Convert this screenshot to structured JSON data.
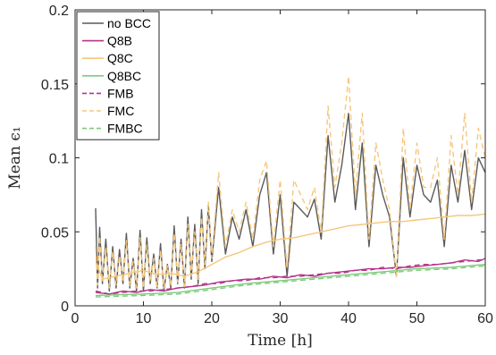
{
  "chart_data": {
    "type": "line",
    "xlabel": "Time [h]",
    "ylabel": "Mean ϵ₁",
    "xlim": [
      0,
      60
    ],
    "ylim": [
      0,
      0.2
    ],
    "xticks": [
      0,
      10,
      20,
      30,
      40,
      50,
      60
    ],
    "xtick_labels": [
      "0",
      "10",
      "20",
      "30",
      "40",
      "50",
      "60"
    ],
    "yticks": [
      0,
      0.05,
      0.1,
      0.15,
      0.2
    ],
    "ytick_labels": [
      "0",
      "0.05",
      "0.1",
      "0.15",
      "0.2"
    ],
    "grid": false,
    "legend_position": "top-left",
    "series": [
      {
        "name": "no BCC",
        "color": "#5a5a5a",
        "dash": "solid",
        "x": [
          3,
          3.3,
          3.6,
          4,
          4.5,
          5,
          5.5,
          6,
          6.5,
          7,
          7.5,
          8,
          8.5,
          9,
          9.5,
          10,
          10.5,
          11,
          11.5,
          12,
          12.5,
          13,
          13.5,
          14,
          14.5,
          15,
          15.5,
          16,
          16.5,
          17,
          17.5,
          18,
          18.5,
          19,
          19.5,
          20,
          21,
          22,
          23,
          24,
          25,
          26,
          27,
          28,
          29,
          30,
          31,
          32,
          33,
          34,
          35,
          36,
          37,
          38,
          39,
          40,
          41,
          42,
          43,
          44,
          45,
          46,
          47,
          48,
          49,
          50,
          51,
          52,
          53,
          54,
          55,
          56,
          57,
          58,
          59,
          60
        ],
        "y": [
          0.066,
          0.012,
          0.053,
          0.015,
          0.045,
          0.01,
          0.04,
          0.012,
          0.038,
          0.015,
          0.049,
          0.012,
          0.032,
          0.01,
          0.051,
          0.01,
          0.046,
          0.015,
          0.035,
          0.012,
          0.042,
          0.01,
          0.028,
          0.012,
          0.054,
          0.015,
          0.045,
          0.012,
          0.06,
          0.018,
          0.055,
          0.015,
          0.065,
          0.025,
          0.068,
          0.03,
          0.08,
          0.035,
          0.06,
          0.045,
          0.065,
          0.04,
          0.075,
          0.09,
          0.035,
          0.075,
          0.02,
          0.07,
          0.065,
          0.06,
          0.072,
          0.045,
          0.115,
          0.07,
          0.095,
          0.13,
          0.065,
          0.11,
          0.04,
          0.095,
          0.075,
          0.06,
          0.02,
          0.1,
          0.06,
          0.095,
          0.075,
          0.07,
          0.085,
          0.04,
          0.095,
          0.07,
          0.105,
          0.065,
          0.1,
          0.09
        ]
      },
      {
        "name": "Q8B",
        "color": "#b5338a",
        "dash": "solid",
        "x": [
          3,
          5,
          7,
          9,
          11,
          13,
          15,
          17,
          19,
          21,
          23,
          25,
          27,
          29,
          31,
          33,
          35,
          37,
          39,
          41,
          43,
          45,
          47,
          49,
          51,
          53,
          55,
          57,
          59,
          60
        ],
        "y": [
          0.009,
          0.008,
          0.01,
          0.009,
          0.011,
          0.01,
          0.012,
          0.013,
          0.014,
          0.016,
          0.017,
          0.018,
          0.018,
          0.02,
          0.019,
          0.021,
          0.02,
          0.022,
          0.023,
          0.024,
          0.025,
          0.025,
          0.026,
          0.026,
          0.027,
          0.028,
          0.029,
          0.031,
          0.03,
          0.032
        ]
      },
      {
        "name": "Q8C",
        "color": "#f6c77c",
        "dash": "solid",
        "x": [
          3,
          4,
          6,
          8,
          10,
          12,
          14,
          16,
          18,
          20,
          22,
          24,
          26,
          28,
          30,
          32,
          34,
          36,
          38,
          40,
          42,
          44,
          46,
          48,
          50,
          52,
          54,
          56,
          58,
          60
        ],
        "y": [
          0.03,
          0.018,
          0.02,
          0.022,
          0.024,
          0.021,
          0.022,
          0.02,
          0.023,
          0.028,
          0.033,
          0.036,
          0.04,
          0.043,
          0.045,
          0.046,
          0.048,
          0.05,
          0.052,
          0.054,
          0.055,
          0.056,
          0.057,
          0.057,
          0.058,
          0.059,
          0.06,
          0.061,
          0.061,
          0.062
        ]
      },
      {
        "name": "Q8BC",
        "color": "#7ccc7a",
        "dash": "solid",
        "x": [
          3,
          10,
          15,
          20,
          25,
          30,
          35,
          40,
          45,
          50,
          55,
          60
        ],
        "y": [
          0.007,
          0.008,
          0.009,
          0.012,
          0.015,
          0.017,
          0.019,
          0.021,
          0.023,
          0.025,
          0.026,
          0.028
        ]
      },
      {
        "name": "FMB",
        "color": "#b5338a",
        "dash": "dashed",
        "x": [
          3,
          5,
          7,
          9,
          11,
          13,
          15,
          17,
          19,
          21,
          23,
          25,
          27,
          29,
          31,
          33,
          35,
          37,
          39,
          41,
          43,
          45,
          47,
          49,
          51,
          53,
          55,
          57,
          59,
          60
        ],
        "y": [
          0.01,
          0.008,
          0.009,
          0.01,
          0.01,
          0.011,
          0.012,
          0.013,
          0.015,
          0.015,
          0.017,
          0.017,
          0.019,
          0.019,
          0.02,
          0.02,
          0.021,
          0.022,
          0.022,
          0.024,
          0.024,
          0.026,
          0.025,
          0.027,
          0.028,
          0.028,
          0.029,
          0.03,
          0.031,
          0.031
        ]
      },
      {
        "name": "FMC",
        "color": "#f6c77c",
        "dash": "dashed",
        "x": [
          3,
          3.3,
          3.6,
          4,
          4.5,
          5,
          5.5,
          6,
          6.5,
          7,
          7.5,
          8,
          8.5,
          9,
          9.5,
          10,
          10.5,
          11,
          11.5,
          12,
          12.5,
          13,
          13.5,
          14,
          14.5,
          15,
          15.5,
          16,
          16.5,
          17,
          17.5,
          18,
          18.5,
          19,
          19.5,
          20,
          21,
          22,
          23,
          24,
          25,
          26,
          27,
          28,
          29,
          30,
          31,
          32,
          33,
          34,
          35,
          36,
          37,
          38,
          39,
          40,
          41,
          42,
          43,
          44,
          45,
          46,
          47,
          48,
          49,
          50,
          51,
          52,
          53,
          54,
          55,
          56,
          57,
          58,
          59,
          60
        ],
        "y": [
          0.04,
          0.014,
          0.047,
          0.016,
          0.04,
          0.012,
          0.037,
          0.014,
          0.034,
          0.016,
          0.044,
          0.013,
          0.03,
          0.012,
          0.046,
          0.012,
          0.041,
          0.016,
          0.032,
          0.013,
          0.038,
          0.012,
          0.027,
          0.013,
          0.049,
          0.016,
          0.042,
          0.013,
          0.055,
          0.02,
          0.05,
          0.017,
          0.06,
          0.028,
          0.07,
          0.032,
          0.09,
          0.04,
          0.065,
          0.05,
          0.07,
          0.045,
          0.085,
          0.098,
          0.04,
          0.085,
          0.025,
          0.085,
          0.075,
          0.065,
          0.08,
          0.05,
          0.135,
          0.08,
          0.11,
          0.155,
          0.075,
          0.13,
          0.045,
          0.11,
          0.085,
          0.065,
          0.02,
          0.12,
          0.065,
          0.11,
          0.08,
          0.08,
          0.1,
          0.045,
          0.115,
          0.075,
          0.13,
          0.07,
          0.12,
          0.1
        ]
      },
      {
        "name": "FMBC",
        "color": "#7ccc7a",
        "dash": "dashed",
        "x": [
          3,
          10,
          15,
          20,
          25,
          30,
          35,
          40,
          45,
          50,
          55,
          60
        ],
        "y": [
          0.006,
          0.007,
          0.008,
          0.011,
          0.014,
          0.016,
          0.018,
          0.02,
          0.022,
          0.024,
          0.025,
          0.027
        ]
      }
    ]
  }
}
